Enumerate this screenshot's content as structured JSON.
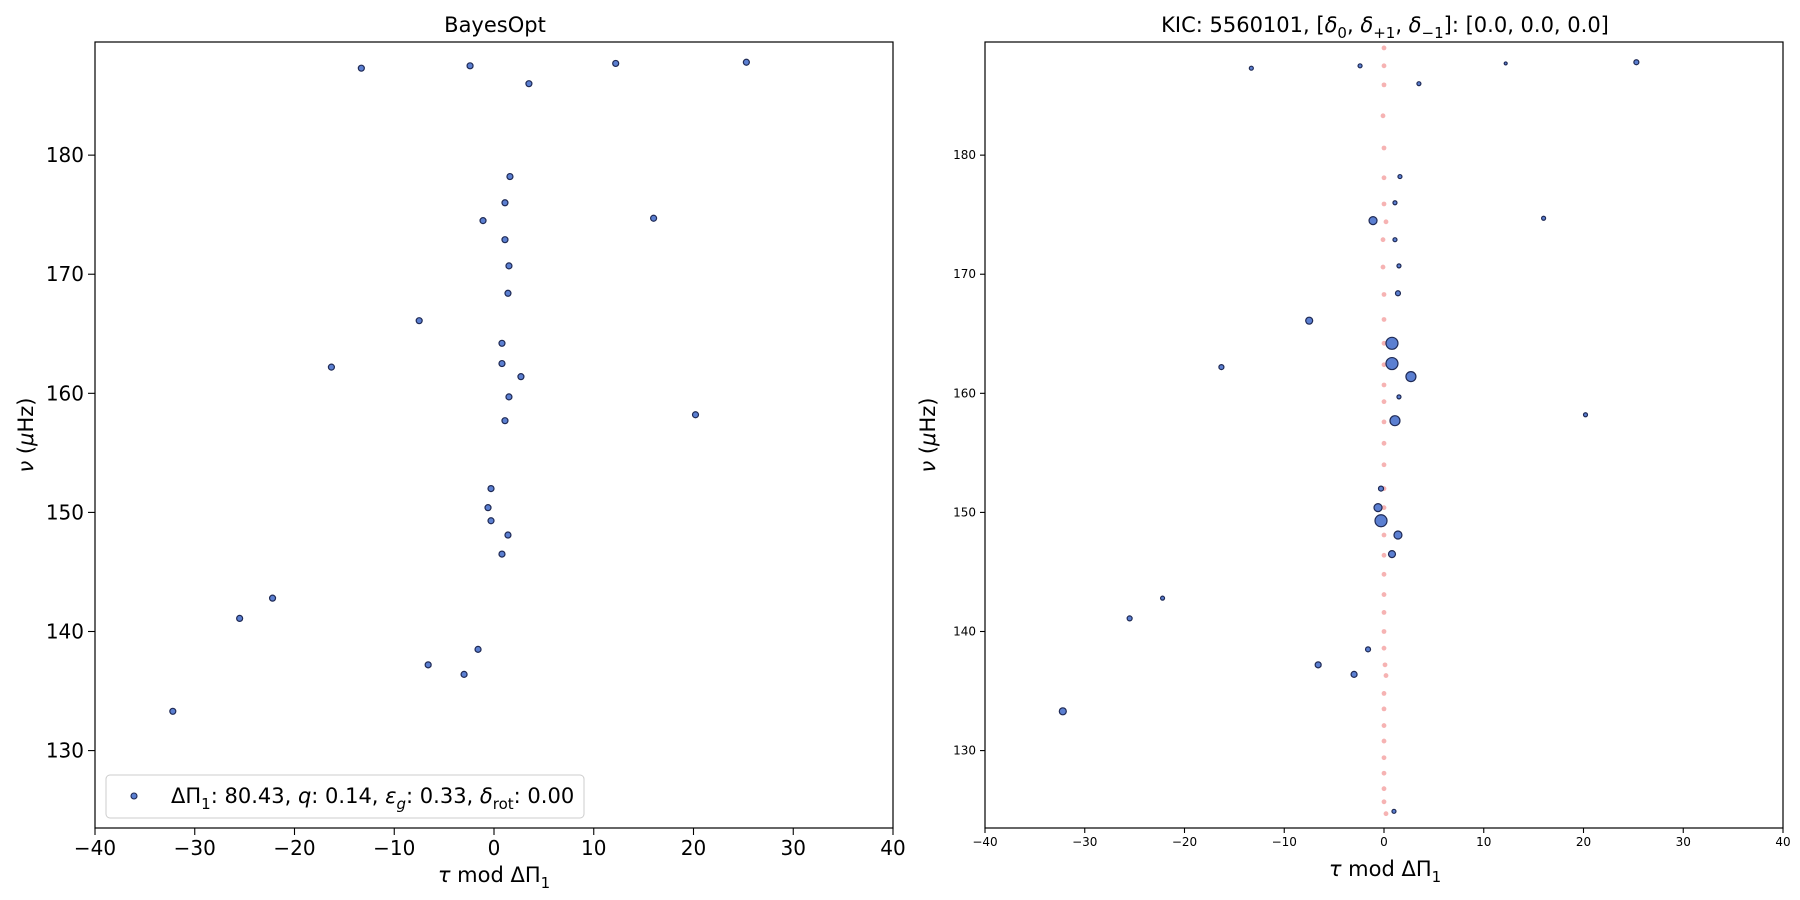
{
  "chart_data": [
    {
      "type": "scatter",
      "title": "BayesOpt",
      "xlabel": "τ mod ΔΠ1",
      "ylabel": "ν (μHz)",
      "xlim": [
        -40,
        40
      ],
      "ylim": [
        123.5,
        189.5
      ],
      "xticks": [
        -40,
        -30,
        -20,
        -10,
        0,
        10,
        20,
        30,
        40
      ],
      "xtick_labels": [
        "−40",
        "−30",
        "−20",
        "−10",
        "0",
        "10",
        "20",
        "30",
        "40"
      ],
      "yticks": [
        130,
        140,
        150,
        160,
        170,
        180
      ],
      "yticks_labels": [
        "130",
        "140",
        "150",
        "160",
        "170",
        "180"
      ],
      "grid": false,
      "legend": {
        "placement": "lower-left",
        "label": "ΔΠ1: 80.43, q: 0.14, εg: 0.33, δrot: 0.00"
      },
      "series": [
        {
          "marker_color": "#5b7fd1",
          "edge_color": "#1f2a55",
          "points": [
            [
              -13.3,
              187.3
            ],
            [
              -2.4,
              187.5
            ],
            [
              3.5,
              186.0
            ],
            [
              12.2,
              187.7
            ],
            [
              25.3,
              187.8
            ],
            [
              1.6,
              178.2
            ],
            [
              1.1,
              176.0
            ],
            [
              -1.1,
              174.5
            ],
            [
              16.0,
              174.7
            ],
            [
              1.1,
              172.9
            ],
            [
              1.5,
              170.7
            ],
            [
              1.4,
              168.4
            ],
            [
              -7.5,
              166.1
            ],
            [
              -16.3,
              162.2
            ],
            [
              0.8,
              164.2
            ],
            [
              0.8,
              162.5
            ],
            [
              2.7,
              161.4
            ],
            [
              1.5,
              159.7
            ],
            [
              20.2,
              158.2
            ],
            [
              1.1,
              157.7
            ],
            [
              -0.3,
              152.0
            ],
            [
              -0.6,
              150.4
            ],
            [
              -0.3,
              149.3
            ],
            [
              1.4,
              148.1
            ],
            [
              0.8,
              146.5
            ],
            [
              -22.2,
              142.8
            ],
            [
              -25.5,
              141.1
            ],
            [
              -1.6,
              138.5
            ],
            [
              -6.6,
              137.2
            ],
            [
              -3.0,
              136.4
            ],
            [
              -32.2,
              133.3
            ]
          ]
        }
      ]
    },
    {
      "type": "scatter",
      "title": "KIC: 5560101, [δ0, δ+1, δ−1]: [0.0, 0.0, 0.0]",
      "xlabel": "τ mod ΔΠ1",
      "ylabel": "ν (μHz)",
      "xlim": [
        -40,
        40
      ],
      "ylim": [
        123.5,
        189.5
      ],
      "xticks": [
        -40,
        -30,
        -20,
        -10,
        0,
        10,
        20,
        30,
        40
      ],
      "xtick_labels": [
        "−40",
        "−30",
        "−20",
        "−10",
        "0",
        "10",
        "20",
        "30",
        "40"
      ],
      "yticks": [
        130,
        140,
        150,
        160,
        170,
        180
      ],
      "yticks_labels": [
        "130",
        "140",
        "150",
        "160",
        "170",
        "180"
      ],
      "grid": false,
      "series": [
        {
          "marker_color": "#f4a6a6",
          "edge_color": "none",
          "points": [
            [
              0.0,
              189.0
            ],
            [
              0.0,
              187.5
            ],
            [
              0.0,
              185.9
            ],
            [
              -0.1,
              183.3
            ],
            [
              0.0,
              180.6
            ],
            [
              0.0,
              178.1
            ],
            [
              0.0,
              175.9
            ],
            [
              0.2,
              174.4
            ],
            [
              -0.1,
              172.9
            ],
            [
              -0.1,
              170.6
            ],
            [
              0.0,
              168.3
            ],
            [
              0.0,
              166.2
            ],
            [
              0.0,
              164.2
            ],
            [
              0.0,
              162.4
            ],
            [
              0.0,
              160.7
            ],
            [
              0.0,
              159.3
            ],
            [
              0.0,
              157.6
            ],
            [
              0.0,
              155.8
            ],
            [
              0.0,
              154.0
            ],
            [
              0.0,
              152.0
            ],
            [
              0.0,
              150.4
            ],
            [
              0.0,
              148.1
            ],
            [
              0.0,
              146.4
            ],
            [
              0.0,
              144.8
            ],
            [
              0.0,
              143.1
            ],
            [
              0.0,
              141.6
            ],
            [
              0.0,
              140.0
            ],
            [
              0.0,
              138.6
            ],
            [
              0.1,
              137.2
            ],
            [
              0.2,
              136.3
            ],
            [
              0.0,
              134.8
            ],
            [
              0.0,
              133.5
            ],
            [
              0.0,
              132.1
            ],
            [
              0.0,
              130.8
            ],
            [
              0.0,
              129.4
            ],
            [
              0.0,
              128.1
            ],
            [
              0.0,
              126.8
            ],
            [
              0.0,
              125.7
            ],
            [
              0.2,
              124.7
            ]
          ]
        },
        {
          "marker_color": "#5b7fd1",
          "edge_color": "#1f2a55",
          "points": [
            [
              -13.3,
              187.3,
              2
            ],
            [
              -2.4,
              187.5,
              2
            ],
            [
              3.5,
              186.0,
              2
            ],
            [
              12.2,
              187.7,
              1.5
            ],
            [
              25.3,
              187.8,
              2.5
            ],
            [
              1.6,
              178.2,
              2
            ],
            [
              1.1,
              176.0,
              2
            ],
            [
              -1.1,
              174.5,
              4
            ],
            [
              16.0,
              174.7,
              2
            ],
            [
              1.1,
              172.9,
              2
            ],
            [
              1.5,
              170.7,
              2
            ],
            [
              1.4,
              168.4,
              2.5
            ],
            [
              -7.5,
              166.1,
              3.5
            ],
            [
              -16.3,
              162.2,
              2.5
            ],
            [
              0.8,
              164.2,
              6
            ],
            [
              0.8,
              162.5,
              6
            ],
            [
              2.7,
              161.4,
              5
            ],
            [
              1.5,
              159.7,
              2
            ],
            [
              20.2,
              158.2,
              2
            ],
            [
              1.1,
              157.7,
              5
            ],
            [
              -0.3,
              152.0,
              2.5
            ],
            [
              -0.6,
              150.4,
              4
            ],
            [
              -0.3,
              149.3,
              6
            ],
            [
              1.4,
              148.1,
              4
            ],
            [
              0.8,
              146.5,
              3.5
            ],
            [
              -22.2,
              142.8,
              2
            ],
            [
              -25.5,
              141.1,
              2.5
            ],
            [
              -1.6,
              138.5,
              2.5
            ],
            [
              -6.6,
              137.2,
              3
            ],
            [
              -3.0,
              136.4,
              3
            ],
            [
              -32.2,
              133.3,
              3.5
            ],
            [
              1.0,
              124.9,
              2
            ]
          ]
        }
      ]
    }
  ]
}
